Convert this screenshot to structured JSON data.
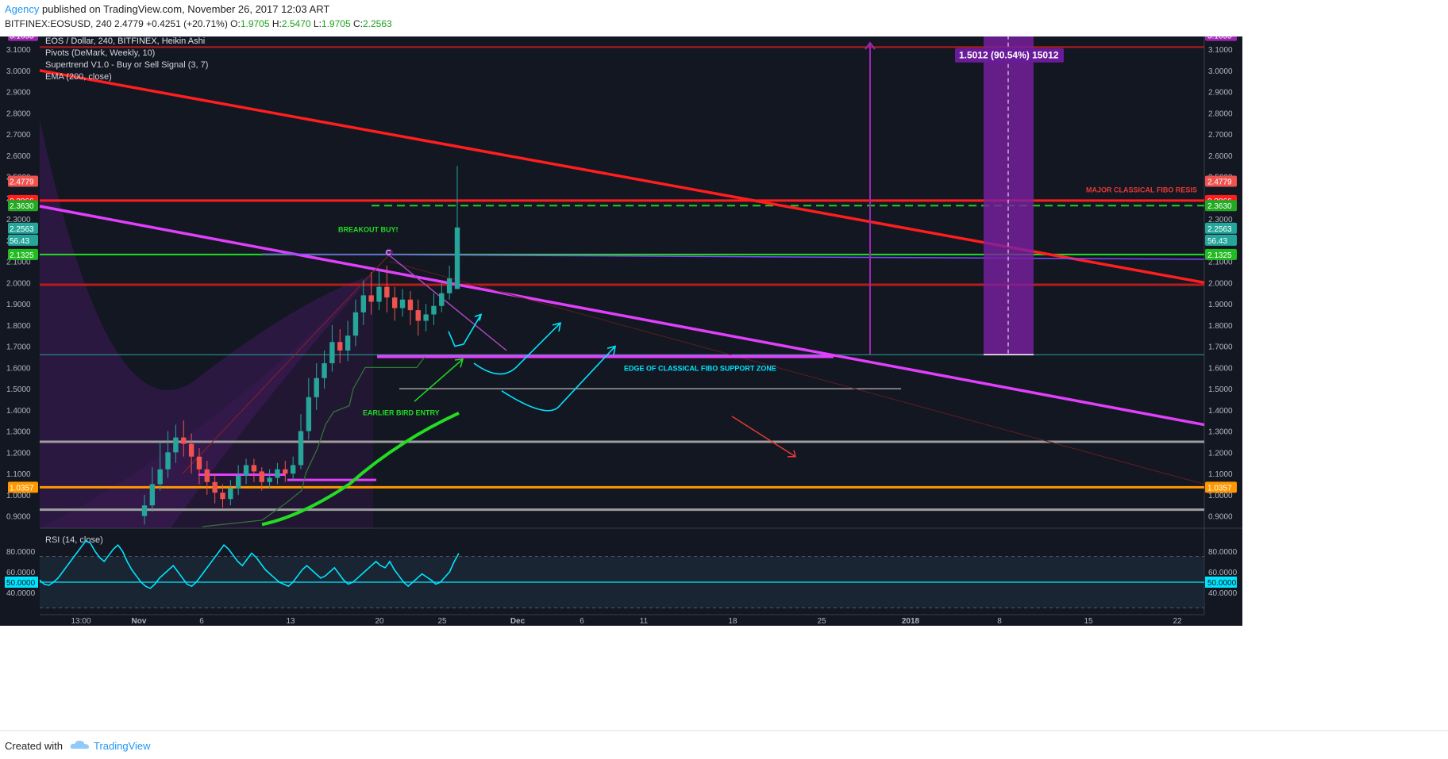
{
  "header": {
    "author": "Agency",
    "published": " published on TradingView.com, November 26, 2017 12:03 ART",
    "symbol_line_pre": "BITFINEX:EOSUSD, 240 2.4779 +0.4251 (+20.71%) O:",
    "o": "1.9705",
    "h": "2.5470",
    "l": "1.9705",
    "c": "2.2563"
  },
  "legend": {
    "title": "EOS / Dollar, 240, BITFINEX, Heikin Ashi",
    "lines": [
      "Pivots (DeMark, Weekly, 10)",
      "Supertrend V1.0 - Buy or Sell Signal (3, 7)",
      "EMA (200, close)"
    ]
  },
  "annotations": {
    "breakout": "BREAKOUT BUY!",
    "earlier": "EARLIER BIRD ENTRY",
    "edge": "EDGE OF CLASSICAL FIBO SUPPORT ZONE",
    "major": "MAJOR CLASSICAL FIBO RESIS",
    "c_label": "C",
    "measure": "1.5012 (90.54%) 15012"
  },
  "rsi": {
    "label": "RSI (14, close)"
  },
  "footer": {
    "created": "Created with",
    "brand": "TradingView"
  },
  "colors": {
    "bg": "#131722",
    "up": "#26a69a",
    "down": "#ef5350",
    "magenta": "#e040fb",
    "red": "#ff1e1e",
    "green": "#22dd22",
    "orange": "#ff9800",
    "cyan": "#00e5ff",
    "purple": "#7b1fa2"
  },
  "chart_data": {
    "type": "candlestick",
    "price_range": [
      0.85,
      3.16
    ],
    "y_ticks": [
      "3.1000",
      "3.0000",
      "2.9000",
      "2.8000",
      "2.7000",
      "2.6000",
      "2.5000",
      "2.4000",
      "2.3000",
      "2.2000",
      "2.1000",
      "2.0000",
      "1.9000",
      "1.8000",
      "1.7000",
      "1.6000",
      "1.5000",
      "1.4000",
      "1.3000",
      "1.2000",
      "1.1000",
      "1.0000",
      "0.9000"
    ],
    "x_labels": [
      "13:00",
      "Nov",
      "6",
      "13",
      "20",
      "25",
      "Dec",
      "6",
      "11",
      "18",
      "25",
      "2018",
      "8",
      "15",
      "22"
    ],
    "price_badges": [
      {
        "text": "3.1655",
        "price": 3.165,
        "color": "#9c27b0"
      },
      {
        "text": "2.4779",
        "price": 2.4779,
        "color": "#ef5350"
      },
      {
        "text": "2.3866",
        "price": 2.3866,
        "color": "#ff1e1e"
      },
      {
        "text": "2.3630",
        "price": 2.363,
        "color": "#22aa22"
      },
      {
        "text": "2.2563",
        "price": 2.2563,
        "color": "#26a69a"
      },
      {
        "text": "56.43",
        "price": 2.2,
        "color": "#26a69a"
      },
      {
        "text": "2.1325",
        "price": 2.1325,
        "color": "#22bb22"
      },
      {
        "text": "1.0357",
        "price": 1.0357,
        "color": "#ff9800"
      }
    ],
    "candles": [
      [
        0.9,
        0.95,
        1.0,
        0.86
      ],
      [
        0.95,
        1.05,
        1.13,
        0.92
      ],
      [
        1.05,
        1.12,
        1.25,
        1.02
      ],
      [
        1.12,
        1.2,
        1.3,
        1.08
      ],
      [
        1.2,
        1.27,
        1.33,
        1.15
      ],
      [
        1.27,
        1.24,
        1.35,
        1.18
      ],
      [
        1.24,
        1.18,
        1.29,
        1.1
      ],
      [
        1.18,
        1.12,
        1.22,
        1.05
      ],
      [
        1.12,
        1.06,
        1.16,
        1.0
      ],
      [
        1.06,
        1.01,
        1.1,
        0.96
      ],
      [
        1.01,
        0.98,
        1.05,
        0.94
      ],
      [
        0.98,
        1.03,
        1.07,
        0.95
      ],
      [
        1.03,
        1.09,
        1.14,
        1.0
      ],
      [
        1.09,
        1.14,
        1.17,
        1.05
      ],
      [
        1.14,
        1.11,
        1.17,
        1.06
      ],
      [
        1.11,
        1.06,
        1.13,
        1.02
      ],
      [
        1.06,
        1.08,
        1.12,
        1.03
      ],
      [
        1.08,
        1.12,
        1.15,
        1.05
      ],
      [
        1.12,
        1.1,
        1.16,
        1.06
      ],
      [
        1.1,
        1.14,
        1.18,
        1.07
      ],
      [
        1.14,
        1.3,
        1.38,
        1.12
      ],
      [
        1.3,
        1.46,
        1.55,
        1.26
      ],
      [
        1.46,
        1.55,
        1.62,
        1.4
      ],
      [
        1.55,
        1.62,
        1.68,
        1.5
      ],
      [
        1.62,
        1.72,
        1.8,
        1.58
      ],
      [
        1.72,
        1.68,
        1.78,
        1.62
      ],
      [
        1.68,
        1.75,
        1.82,
        1.63
      ],
      [
        1.75,
        1.86,
        1.92,
        1.7
      ],
      [
        1.86,
        1.94,
        2.01,
        1.8
      ],
      [
        1.94,
        1.91,
        2.05,
        1.85
      ],
      [
        1.91,
        1.98,
        2.06,
        1.87
      ],
      [
        1.98,
        1.93,
        2.08,
        1.86
      ],
      [
        1.93,
        1.88,
        1.98,
        1.82
      ],
      [
        1.88,
        1.92,
        1.97,
        1.84
      ],
      [
        1.92,
        1.87,
        1.96,
        1.8
      ],
      [
        1.87,
        1.82,
        1.92,
        1.75
      ],
      [
        1.82,
        1.85,
        1.9,
        1.77
      ],
      [
        1.85,
        1.89,
        1.95,
        1.8
      ],
      [
        1.89,
        1.95,
        2.0,
        1.86
      ],
      [
        1.95,
        2.02,
        2.08,
        1.92
      ],
      [
        1.97,
        2.26,
        2.55,
        1.97
      ]
    ],
    "rsi": [
      52,
      48,
      47,
      50,
      54,
      60,
      66,
      72,
      78,
      84,
      90,
      88,
      80,
      74,
      70,
      76,
      82,
      86,
      80,
      70,
      62,
      56,
      50,
      46,
      44,
      48,
      54,
      58,
      62,
      66,
      60,
      54,
      48,
      46,
      50,
      56,
      62,
      68,
      74,
      80,
      86,
      82,
      76,
      70,
      66,
      72,
      78,
      74,
      68,
      62,
      58,
      54,
      50,
      48,
      46,
      50,
      56,
      62,
      66,
      62,
      58,
      54,
      56,
      60,
      64,
      58,
      52,
      48,
      50,
      54,
      58,
      62,
      66,
      70,
      66,
      64,
      70,
      62,
      56,
      50,
      46,
      50,
      54,
      58,
      55,
      52,
      48,
      50,
      55,
      60,
      70,
      78
    ]
  }
}
